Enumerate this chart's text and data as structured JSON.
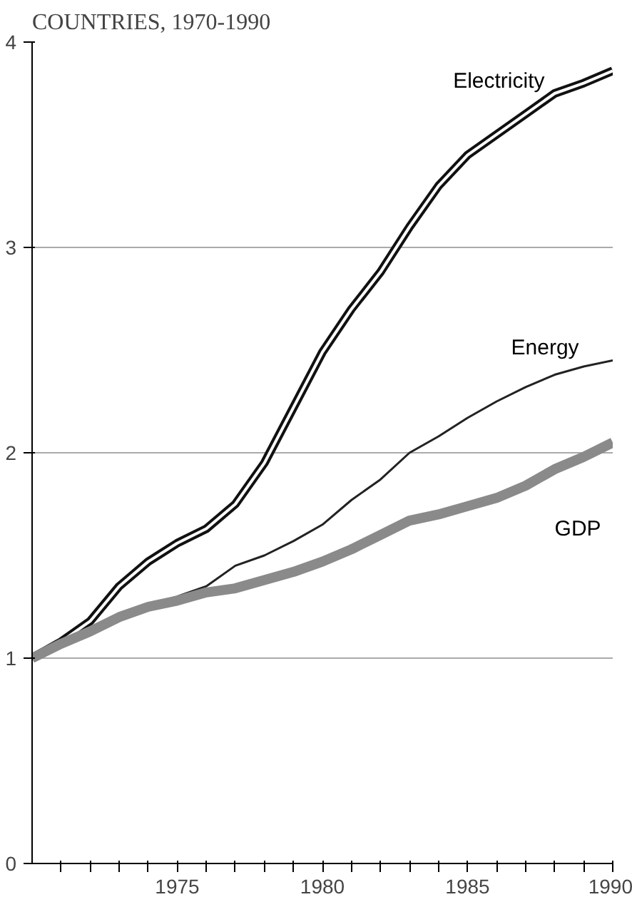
{
  "chart_data": {
    "type": "line",
    "title": "COUNTRIES, 1970-1990",
    "x": [
      1970,
      1971,
      1972,
      1973,
      1974,
      1975,
      1976,
      1977,
      1978,
      1979,
      1980,
      1981,
      1982,
      1983,
      1984,
      1985,
      1986,
      1987,
      1988,
      1989,
      1990
    ],
    "series": [
      {
        "name": "Electricity",
        "color": "#111111",
        "values": [
          1.0,
          1.08,
          1.18,
          1.35,
          1.47,
          1.56,
          1.63,
          1.75,
          1.95,
          2.22,
          2.49,
          2.7,
          2.88,
          3.1,
          3.3,
          3.45,
          3.55,
          3.65,
          3.75,
          3.8,
          3.86
        ]
      },
      {
        "name": "Energy",
        "color": "#222222",
        "values": [
          1.0,
          1.07,
          1.15,
          1.2,
          1.26,
          1.3,
          1.35,
          1.45,
          1.5,
          1.57,
          1.65,
          1.77,
          1.87,
          2.0,
          2.08,
          2.17,
          2.25,
          2.32,
          2.38,
          2.42,
          2.45
        ]
      },
      {
        "name": "GDP",
        "color": "#8a8a8a",
        "values": [
          1.0,
          1.07,
          1.13,
          1.2,
          1.25,
          1.28,
          1.32,
          1.34,
          1.38,
          1.42,
          1.47,
          1.53,
          1.6,
          1.67,
          1.7,
          1.74,
          1.78,
          1.84,
          1.92,
          1.98,
          2.05
        ]
      }
    ],
    "xlim": [
      1970,
      1990
    ],
    "xticks": [
      {
        "value": 1971,
        "label": null
      },
      {
        "value": 1972,
        "label": null
      },
      {
        "value": 1973,
        "label": null
      },
      {
        "value": 1974,
        "label": null
      },
      1975,
      {
        "value": 1976,
        "label": null
      },
      {
        "value": 1977,
        "label": null
      },
      {
        "value": 1978,
        "label": null
      },
      {
        "value": 1979,
        "label": null
      },
      1980,
      {
        "value": 1981,
        "label": null
      },
      {
        "value": 1982,
        "label": null
      },
      {
        "value": 1983,
        "label": null
      },
      {
        "value": 1984,
        "label": null
      },
      1985,
      {
        "value": 1986,
        "label": null
      },
      {
        "value": 1987,
        "label": null
      },
      {
        "value": 1988,
        "label": null
      },
      {
        "value": 1989,
        "label": null
      },
      1990
    ],
    "ylim": [
      0,
      4
    ],
    "yticks": [
      0,
      1,
      2,
      3,
      4
    ],
    "grid": "y",
    "marker": "none",
    "line_style": "solid"
  }
}
